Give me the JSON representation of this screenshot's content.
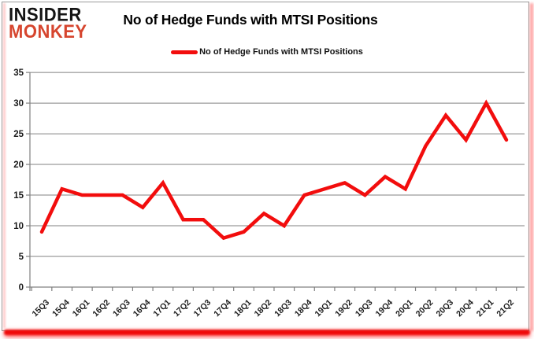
{
  "brand": {
    "line1": "INSIDER",
    "line2": "MONKEY",
    "line1_color": "#141414",
    "line2_color": "#d6452e"
  },
  "header": {
    "title": "No of Hedge Funds with MTSI Positions"
  },
  "legend": {
    "label": "No of Hedge Funds with MTSI Positions",
    "swatch_color": "#f20d0d"
  },
  "chart_data": {
    "type": "line",
    "title": "No of Hedge Funds with MTSI Positions",
    "categories": [
      "15Q3",
      "15Q4",
      "16Q1",
      "16Q2",
      "16Q3",
      "16Q4",
      "17Q1",
      "17Q2",
      "17Q3",
      "17Q4",
      "18Q1",
      "18Q2",
      "18Q3",
      "18Q4",
      "19Q1",
      "19Q2",
      "19Q3",
      "19Q4",
      "20Q1",
      "20Q2",
      "20Q3",
      "20Q4",
      "21Q1",
      "21Q2"
    ],
    "series": [
      {
        "name": "No of Hedge Funds with MTSI Positions",
        "color": "#f20d0d",
        "values": [
          9,
          16,
          15,
          15,
          15,
          13,
          17,
          11,
          11,
          8,
          9,
          12,
          10,
          15,
          16,
          17,
          15,
          18,
          16,
          23,
          28,
          24,
          30,
          24
        ]
      }
    ],
    "xlabel": "",
    "ylabel": "",
    "ylim": [
      0,
      35
    ],
    "yticks": [
      0,
      5,
      10,
      15,
      20,
      25,
      30,
      35
    ],
    "grid": true,
    "gridline_color": "#808080",
    "axis_color": "#808080",
    "tick_label_color": "#1a1a1a",
    "legend_position": "top"
  }
}
